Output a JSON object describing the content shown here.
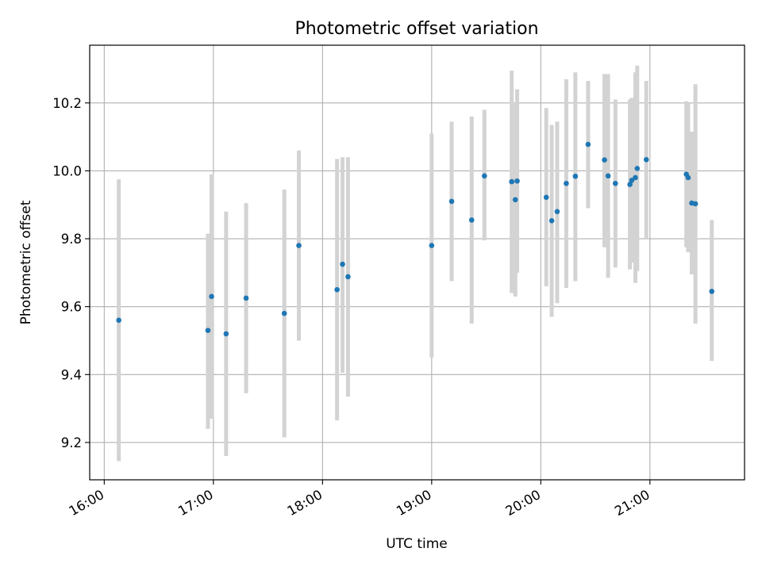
{
  "chart_data": {
    "type": "scatter",
    "title": "Photometric offset variation",
    "xlabel": "UTC time",
    "ylabel": "Photometric offset",
    "xlim": [
      "15:52",
      "21:52"
    ],
    "ylim": [
      9.09,
      10.37
    ],
    "x_ticks": [
      "16:00",
      "17:00",
      "18:00",
      "19:00",
      "20:00",
      "21:00"
    ],
    "y_ticks": [
      9.2,
      9.4,
      9.6,
      9.8,
      10.0,
      10.2
    ],
    "grid": true,
    "legend": "none",
    "colors": {
      "point": "#1f77b4",
      "error_bar": "#d3d3d3"
    },
    "series": [
      {
        "points": [
          {
            "time": "16:08",
            "y": 9.56,
            "ylo": 9.145,
            "yhi": 9.975
          },
          {
            "time": "16:57",
            "y": 9.53,
            "ylo": 9.24,
            "yhi": 9.815
          },
          {
            "time": "16:59",
            "y": 9.63,
            "ylo": 9.27,
            "yhi": 9.99
          },
          {
            "time": "17:07",
            "y": 9.52,
            "ylo": 9.16,
            "yhi": 9.88
          },
          {
            "time": "17:18",
            "y": 9.625,
            "ylo": 9.345,
            "yhi": 9.905
          },
          {
            "time": "17:39",
            "y": 9.58,
            "ylo": 9.215,
            "yhi": 9.945
          },
          {
            "time": "17:47",
            "y": 9.78,
            "ylo": 9.5,
            "yhi": 10.06
          },
          {
            "time": "18:08",
            "y": 9.65,
            "ylo": 9.265,
            "yhi": 10.035
          },
          {
            "time": "18:11",
            "y": 9.725,
            "ylo": 9.405,
            "yhi": 10.04
          },
          {
            "time": "18:14",
            "y": 9.688,
            "ylo": 9.335,
            "yhi": 10.04
          },
          {
            "time": "19:00",
            "y": 9.78,
            "ylo": 9.45,
            "yhi": 10.11
          },
          {
            "time": "19:11",
            "y": 9.91,
            "ylo": 9.675,
            "yhi": 10.145
          },
          {
            "time": "19:22",
            "y": 9.855,
            "ylo": 9.55,
            "yhi": 10.16
          },
          {
            "time": "19:29",
            "y": 9.985,
            "ylo": 9.795,
            "yhi": 10.18
          },
          {
            "time": "19:44",
            "y": 9.968,
            "ylo": 9.64,
            "yhi": 10.295
          },
          {
            "time": "19:46",
            "y": 9.915,
            "ylo": 9.63,
            "yhi": 10.2
          },
          {
            "time": "19:47",
            "y": 9.97,
            "ylo": 9.7,
            "yhi": 10.24
          },
          {
            "time": "20:03",
            "y": 9.922,
            "ylo": 9.66,
            "yhi": 10.185
          },
          {
            "time": "20:06",
            "y": 9.853,
            "ylo": 9.57,
            "yhi": 10.135
          },
          {
            "time": "20:09",
            "y": 9.88,
            "ylo": 9.61,
            "yhi": 10.145
          },
          {
            "time": "20:14",
            "y": 9.963,
            "ylo": 9.655,
            "yhi": 10.27
          },
          {
            "time": "20:19",
            "y": 9.984,
            "ylo": 9.675,
            "yhi": 10.29
          },
          {
            "time": "20:26",
            "y": 10.078,
            "ylo": 9.89,
            "yhi": 10.265
          },
          {
            "time": "20:35",
            "y": 10.032,
            "ylo": 9.775,
            "yhi": 10.285
          },
          {
            "time": "20:37",
            "y": 9.985,
            "ylo": 9.685,
            "yhi": 10.285
          },
          {
            "time": "20:41",
            "y": 9.963,
            "ylo": 9.715,
            "yhi": 10.21
          },
          {
            "time": "20:49",
            "y": 9.96,
            "ylo": 9.71,
            "yhi": 10.21
          },
          {
            "time": "20:50",
            "y": 9.972,
            "ylo": 9.73,
            "yhi": 10.215
          },
          {
            "time": "20:52",
            "y": 9.98,
            "ylo": 9.67,
            "yhi": 10.29
          },
          {
            "time": "20:53",
            "y": 10.007,
            "ylo": 9.705,
            "yhi": 10.31
          },
          {
            "time": "20:58",
            "y": 10.033,
            "ylo": 9.8,
            "yhi": 10.265
          },
          {
            "time": "21:20",
            "y": 9.99,
            "ylo": 9.775,
            "yhi": 10.205
          },
          {
            "time": "21:21",
            "y": 9.98,
            "ylo": 9.76,
            "yhi": 10.2
          },
          {
            "time": "21:23",
            "y": 9.905,
            "ylo": 9.695,
            "yhi": 10.115
          },
          {
            "time": "21:25",
            "y": 9.903,
            "ylo": 9.55,
            "yhi": 10.255
          },
          {
            "time": "21:34",
            "y": 9.645,
            "ylo": 9.44,
            "yhi": 9.855
          }
        ]
      }
    ]
  }
}
